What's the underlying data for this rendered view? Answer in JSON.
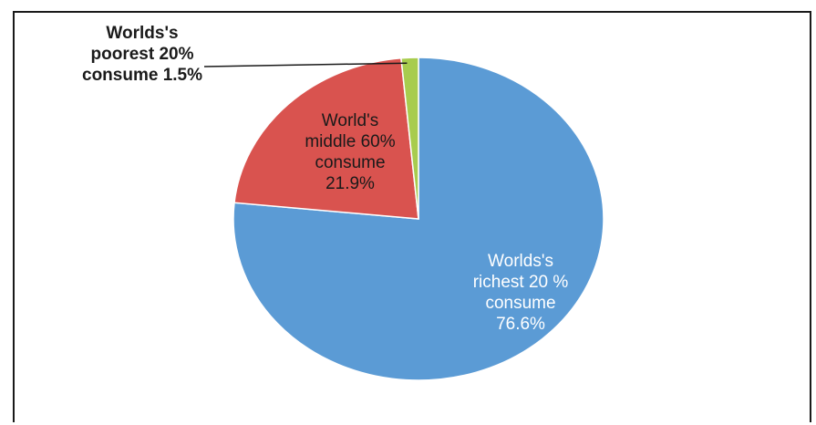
{
  "chart_data": {
    "type": "pie",
    "title": "",
    "slices": [
      {
        "label_lines": [
          "Worlds's",
          "richest 20 %",
          "consume",
          "76.6%"
        ],
        "value": 76.6,
        "color": "#5b9bd5",
        "label_color": "#ffffff"
      },
      {
        "label_lines": [
          "World's",
          "middle 60%",
          "consume",
          "21.9%"
        ],
        "value": 21.9,
        "color": "#d9534f",
        "label_color": "#1a1a1a"
      },
      {
        "label_lines": [
          "Worlds's",
          "poorest 20%",
          "consume 1.5%"
        ],
        "value": 1.5,
        "color": "#a8cc4e",
        "label_color": "#1a1a1a"
      }
    ],
    "start_angle_deg": 0,
    "direction": "clockwise",
    "legend": "none"
  }
}
